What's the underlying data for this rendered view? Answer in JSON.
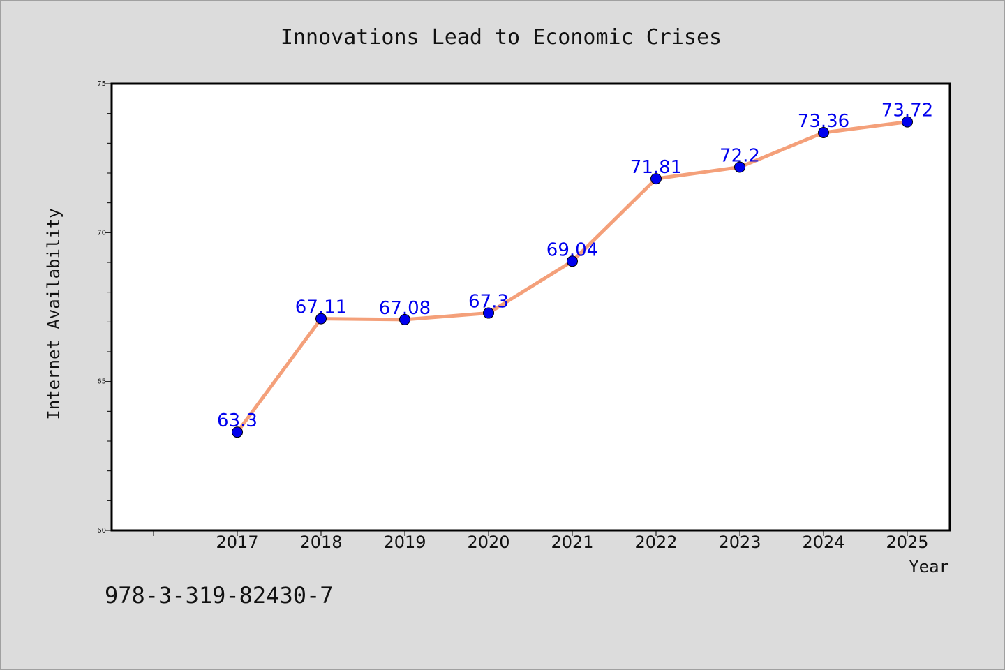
{
  "chart_data": {
    "type": "line",
    "title": "Innovations Lead to Economic Crises",
    "xlabel": "Year",
    "ylabel": "Internet Availability",
    "x": [
      "2017",
      "2018",
      "2019",
      "2020",
      "2021",
      "2022",
      "2023",
      "2024",
      "2025"
    ],
    "values": [
      63.3,
      67.11,
      67.08,
      67.3,
      69.04,
      71.81,
      72.2,
      73.36,
      73.72
    ],
    "data_labels": [
      "63.3",
      "67.11",
      "67.08",
      "67.3",
      "69.04",
      "71.81",
      "72.2",
      "73.36",
      "73.72"
    ],
    "ylim": [
      60,
      75
    ],
    "y_ticks": [
      60,
      65,
      70,
      75
    ],
    "grid": false,
    "line_color": "#f4a07a",
    "marker_color": "#0000ee",
    "label_color": "#0000ee"
  },
  "footer": {
    "isbn": "978-3-319-82430-7"
  }
}
